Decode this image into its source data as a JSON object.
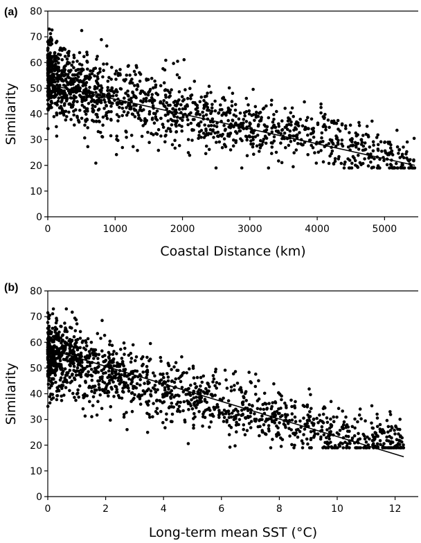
{
  "chart_data": [
    {
      "type": "scatter",
      "panel_label": "(a)",
      "xlabel": "Coastal Distance (km)",
      "ylabel": "Similarity",
      "xlim": [
        0,
        5500
      ],
      "ylim": [
        0,
        80
      ],
      "xticks": [
        0,
        1000,
        2000,
        3000,
        4000,
        5000
      ],
      "yticks": [
        0,
        10,
        20,
        30,
        40,
        50,
        60,
        70,
        80
      ],
      "grid": false,
      "legend": "none",
      "trend_line": {
        "x": [
          0,
          5450
        ],
        "y": [
          51.5,
          20.0
        ]
      },
      "points_summary": {
        "count_approx": 1500,
        "x_range": [
          0,
          5450
        ],
        "y_range": [
          19,
          73
        ],
        "description_binned_means": [
          [
            0,
            55
          ],
          [
            500,
            50
          ],
          [
            1000,
            46
          ],
          [
            1500,
            43
          ],
          [
            2000,
            41
          ],
          [
            2500,
            37
          ],
          [
            3000,
            35
          ],
          [
            3500,
            33
          ],
          [
            4000,
            31
          ],
          [
            4500,
            28
          ],
          [
            5000,
            24
          ],
          [
            5450,
            21
          ]
        ]
      }
    },
    {
      "type": "scatter",
      "panel_label": "(b)",
      "xlabel": "Long-term mean SST (°C)",
      "ylabel": "Similarity",
      "xlim": [
        0,
        12.8
      ],
      "ylim": [
        0,
        80
      ],
      "xticks": [
        0,
        2,
        4,
        6,
        8,
        10,
        12
      ],
      "yticks": [
        0,
        10,
        20,
        30,
        40,
        50,
        60,
        70,
        80
      ],
      "grid": false,
      "legend": "none",
      "trend_line": {
        "x": [
          0,
          12.3
        ],
        "y": [
          57.5,
          15.5
        ]
      },
      "points_summary": {
        "count_approx": 1500,
        "x_range": [
          0,
          12.3
        ],
        "y_range": [
          19,
          73
        ],
        "description_binned_means": [
          [
            0,
            55
          ],
          [
            1,
            52
          ],
          [
            2,
            48
          ],
          [
            3,
            45
          ],
          [
            4,
            42
          ],
          [
            5,
            39
          ],
          [
            6,
            36
          ],
          [
            7,
            33
          ],
          [
            8,
            29
          ],
          [
            9,
            27
          ],
          [
            10,
            24
          ],
          [
            12,
            21
          ]
        ]
      }
    }
  ]
}
